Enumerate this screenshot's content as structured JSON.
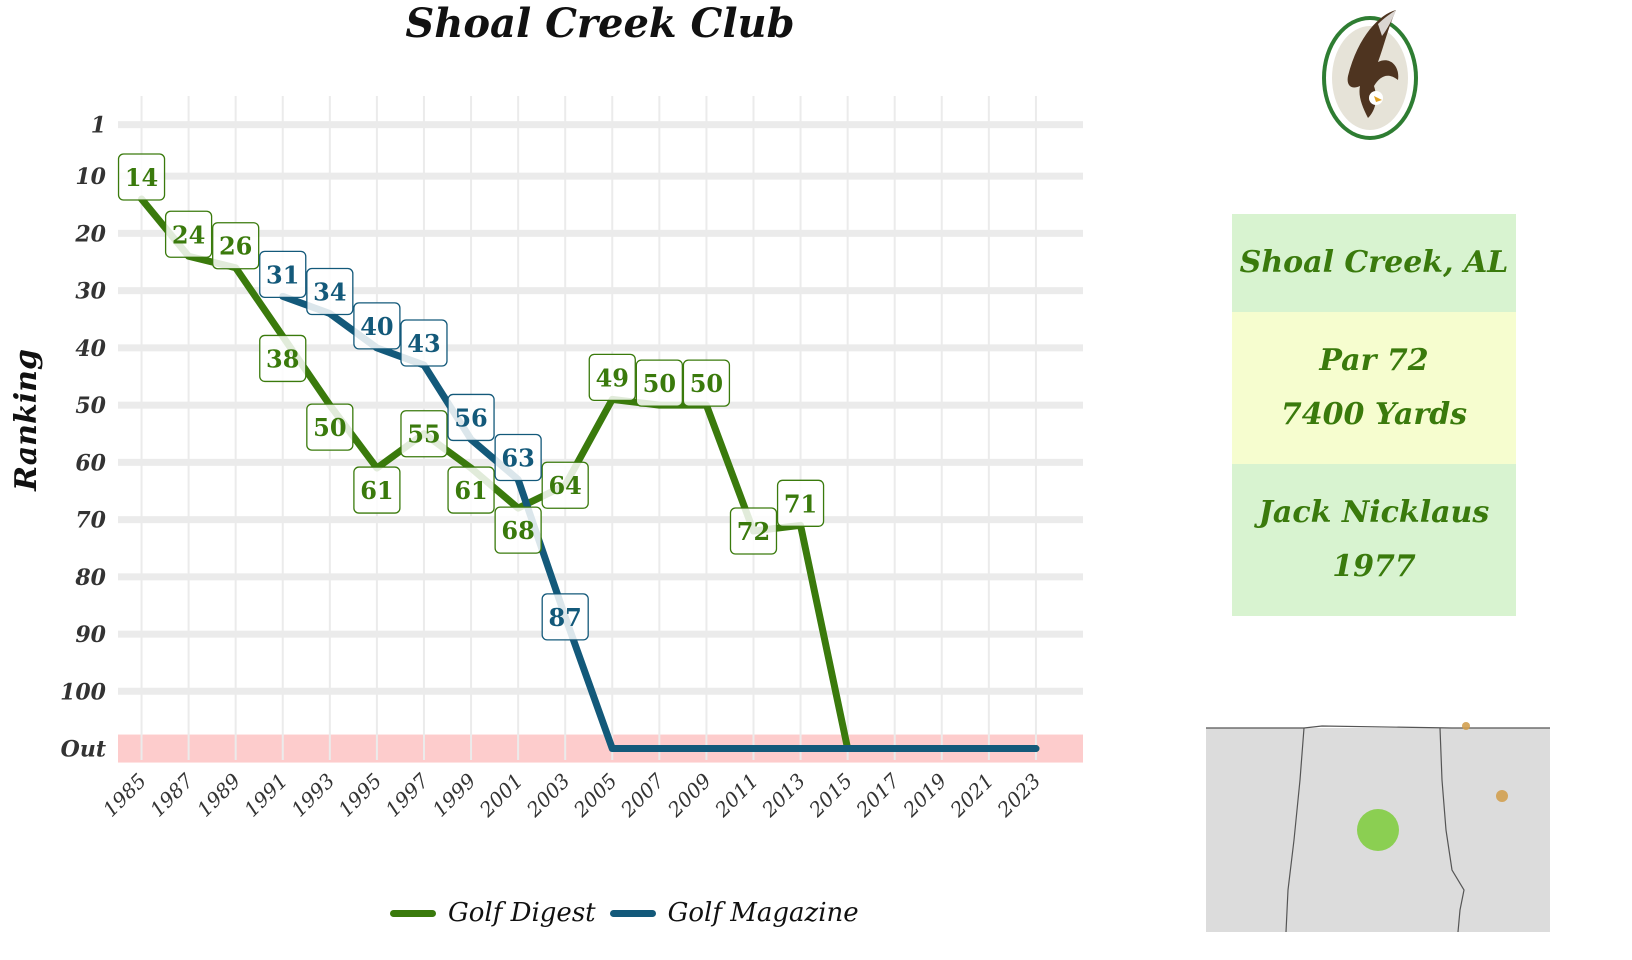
{
  "title": "Shoal Creek Club",
  "colors": {
    "golf_digest": "#3a7a0c",
    "golf_magazine": "#13597a",
    "out_band": "#fdcccc",
    "grid": "#ebebeb",
    "card_green": "#d8f3d0",
    "card_yellow": "#f6fdcf"
  },
  "info_card": {
    "location": "Shoal Creek, AL",
    "par": "Par 72",
    "yards": "7400 Yards",
    "architect": "Jack Nicklaus",
    "year": "1977"
  },
  "logo": {
    "icon": "eagle-emblem-icon"
  },
  "map": {
    "icon": "state-map-icon"
  },
  "legend": [
    {
      "label": "Golf Digest",
      "color": "#3a7a0c"
    },
    {
      "label": "Golf Magazine",
      "color": "#13597a"
    }
  ],
  "chart_data": {
    "type": "line",
    "title": "Shoal Creek Club",
    "xlabel": "",
    "ylabel": "Ranking",
    "y_reversed": true,
    "y_ticks": [
      "1",
      "10",
      "20",
      "30",
      "40",
      "50",
      "60",
      "70",
      "80",
      "90",
      "100",
      "Out"
    ],
    "y_tick_values": [
      1,
      10,
      20,
      30,
      40,
      50,
      60,
      70,
      80,
      90,
      100,
      110
    ],
    "x_ticks": [
      "1985",
      "1987",
      "1989",
      "1991",
      "1993",
      "1995",
      "1997",
      "1999",
      "2001",
      "2003",
      "2005",
      "2007",
      "2009",
      "2011",
      "2013",
      "2015",
      "2017",
      "2019",
      "2021",
      "2023"
    ],
    "xlim": [
      1984,
      2025
    ],
    "ylim": [
      -4,
      112
    ],
    "out_band_label": "Out",
    "grid": true,
    "legend_position": "bottom",
    "series": [
      {
        "name": "Golf Digest",
        "color": "#3a7a0c",
        "points": [
          {
            "x": 1985,
            "y": 14,
            "label": "14"
          },
          {
            "x": 1987,
            "y": 24,
            "label": "24"
          },
          {
            "x": 1989,
            "y": 26,
            "label": "26"
          },
          {
            "x": 1991,
            "y": 38,
            "label": "38"
          },
          {
            "x": 1993,
            "y": 50,
            "label": "50"
          },
          {
            "x": 1995,
            "y": 61,
            "label": "61"
          },
          {
            "x": 1997,
            "y": 55,
            "label": "55"
          },
          {
            "x": 1999,
            "y": 61,
            "label": "61"
          },
          {
            "x": 2001,
            "y": 68,
            "label": "68"
          },
          {
            "x": 2003,
            "y": 64,
            "label": "64"
          },
          {
            "x": 2005,
            "y": 49,
            "label": "49"
          },
          {
            "x": 2007,
            "y": 50,
            "label": "50"
          },
          {
            "x": 2009,
            "y": 50,
            "label": "50"
          },
          {
            "x": 2011,
            "y": 72,
            "label": "72"
          },
          {
            "x": 2013,
            "y": 71,
            "label": "71"
          },
          {
            "x": 2015,
            "y": 110,
            "label": ""
          },
          {
            "x": 2017,
            "y": 110,
            "label": ""
          },
          {
            "x": 2019,
            "y": 110,
            "label": ""
          },
          {
            "x": 2021,
            "y": 110,
            "label": ""
          },
          {
            "x": 2023,
            "y": 110,
            "label": ""
          }
        ]
      },
      {
        "name": "Golf Magazine",
        "color": "#13597a",
        "points": [
          {
            "x": 1991,
            "y": 31,
            "label": "31"
          },
          {
            "x": 1993,
            "y": 34,
            "label": "34"
          },
          {
            "x": 1995,
            "y": 40,
            "label": "40"
          },
          {
            "x": 1997,
            "y": 43,
            "label": "43"
          },
          {
            "x": 1999,
            "y": 56,
            "label": "56"
          },
          {
            "x": 2001,
            "y": 63,
            "label": "63"
          },
          {
            "x": 2003,
            "y": 87,
            "label": "87"
          },
          {
            "x": 2005,
            "y": 110,
            "label": ""
          },
          {
            "x": 2007,
            "y": 110,
            "label": ""
          },
          {
            "x": 2009,
            "y": 110,
            "label": ""
          },
          {
            "x": 2011,
            "y": 110,
            "label": ""
          },
          {
            "x": 2013,
            "y": 110,
            "label": ""
          },
          {
            "x": 2015,
            "y": 110,
            "label": ""
          },
          {
            "x": 2017,
            "y": 110,
            "label": ""
          },
          {
            "x": 2019,
            "y": 110,
            "label": ""
          },
          {
            "x": 2021,
            "y": 110,
            "label": ""
          },
          {
            "x": 2023,
            "y": 110,
            "label": ""
          }
        ]
      }
    ]
  }
}
